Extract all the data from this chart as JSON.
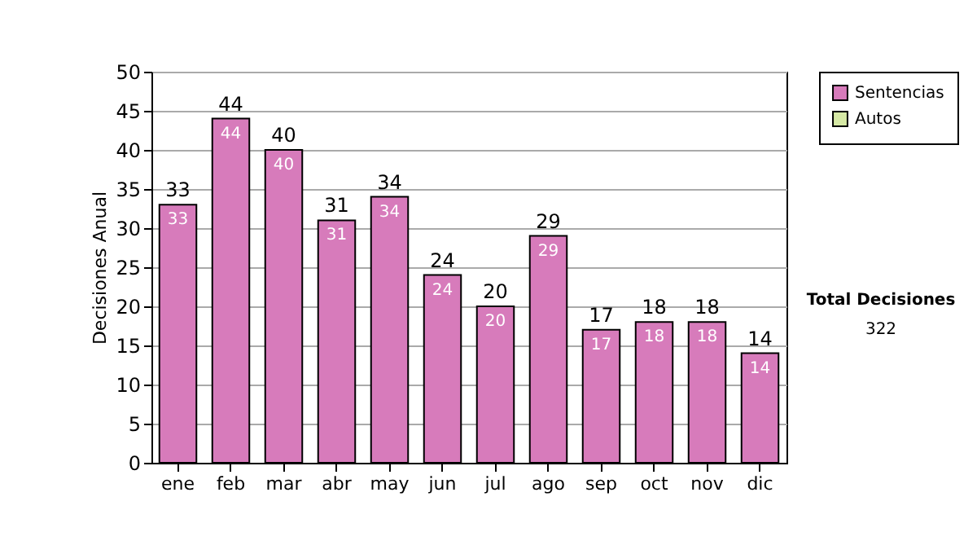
{
  "chart_data": {
    "type": "bar",
    "ylabel": "Decisiones Anual",
    "categories": [
      "ene",
      "feb",
      "mar",
      "abr",
      "may",
      "jun",
      "jul",
      "ago",
      "sep",
      "oct",
      "nov",
      "dic"
    ],
    "series": [
      {
        "name": "Sentencias",
        "color": "#d77bbb",
        "values": [
          33,
          44,
          40,
          31,
          34,
          24,
          20,
          29,
          17,
          18,
          18,
          14
        ],
        "value_labels": [
          "33",
          "44",
          "40",
          "31",
          "34",
          "24",
          "20",
          "29",
          "17",
          "18",
          "18",
          "14"
        ]
      },
      {
        "name": "Autos",
        "color": "#d6e9a5",
        "values": [
          0,
          0,
          0,
          0,
          0,
          0,
          0,
          0,
          0,
          0,
          0,
          0
        ]
      }
    ],
    "stacked": true,
    "totals": [
      "33",
      "44",
      "40",
      "31",
      "34",
      "24",
      "20",
      "29",
      "17",
      "18",
      "18",
      "14"
    ],
    "ylim": [
      0,
      50
    ],
    "yticks": [
      0,
      5,
      10,
      15,
      20,
      25,
      30,
      35,
      40,
      45,
      50
    ],
    "grid": "y",
    "legend": "right",
    "annotations": [
      "Total Decisiones",
      "322"
    ]
  }
}
